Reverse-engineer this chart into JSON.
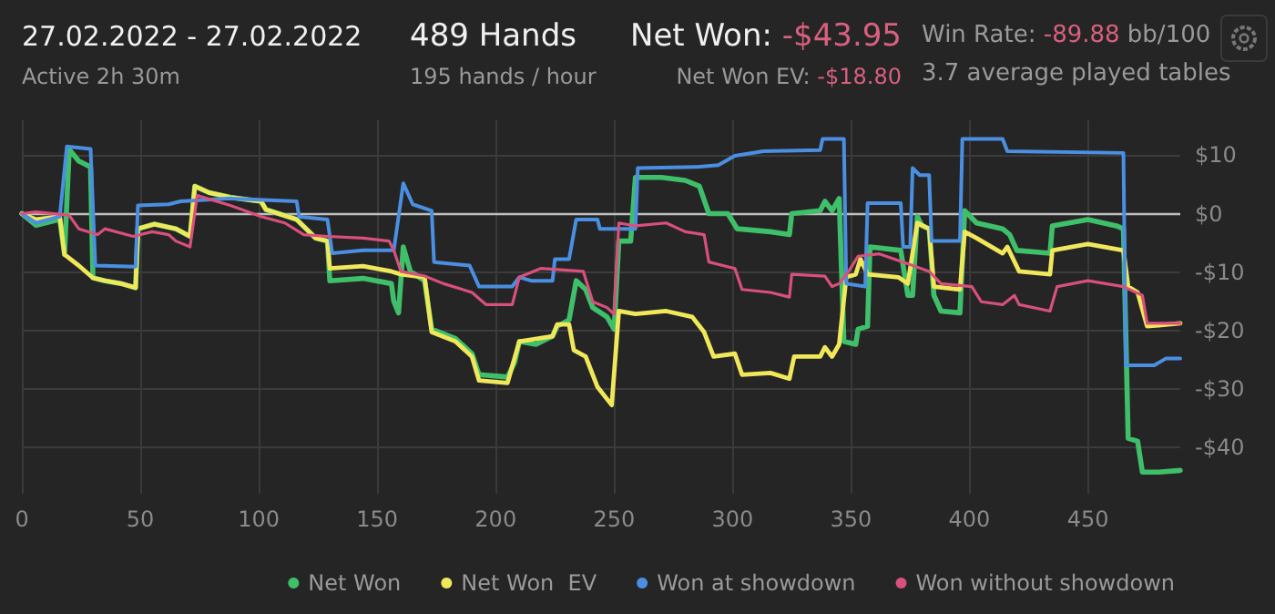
{
  "chart_data": {
    "type": "line",
    "title": "27.02.2022 - 27.02.2022",
    "subtitle": "Active 2h 30m",
    "annotations": [
      "489 Hands",
      "195 hands / hour",
      "Net Won: -$43.95",
      "Net Won  EV: -$18.80",
      "Win Rate: -89.88 bb/100",
      "3.7 average played tables"
    ],
    "xlim": [
      0,
      489
    ],
    "xticks": [
      0,
      50,
      100,
      150,
      200,
      250,
      300,
      350,
      400,
      450
    ],
    "ylim": [
      -48,
      16
    ],
    "yticks": [
      {
        "value": -40,
        "label": "-$40"
      },
      {
        "value": -30,
        "label": "-$30"
      },
      {
        "value": -20,
        "label": "-$20"
      },
      {
        "value": -10,
        "label": "-$10"
      },
      {
        "value": 0,
        "label": "$0"
      },
      {
        "value": 10,
        "label": "$10"
      }
    ],
    "grid": true,
    "legend": "bottom right",
    "marker": "none",
    "line_style": "solid",
    "ref_lines": [
      {
        "axis": "y",
        "value": 0,
        "color": "#bfbfbf"
      }
    ],
    "series": [
      {
        "name": "Net Won",
        "color": "#3fbf6a",
        "x": [
          0,
          6,
          16,
          18,
          20,
          24,
          29,
          30,
          35,
          42,
          48,
          49,
          56,
          65,
          71,
          73,
          79,
          88,
          101,
          103,
          116,
          124,
          129,
          130,
          144,
          156,
          157,
          159,
          161,
          164,
          170,
          173,
          183,
          190,
          193,
          205,
          208,
          210,
          217,
          224,
          226,
          231,
          234,
          238,
          241,
          247,
          250,
          252,
          257,
          259,
          270,
          280,
          286,
          290,
          298,
          302,
          316,
          324,
          325,
          337,
          339,
          342,
          345,
          347,
          352,
          353,
          357,
          358,
          371,
          374,
          376,
          378,
          380,
          383,
          385,
          388,
          396,
          398,
          403,
          414,
          417,
          420,
          434,
          435,
          450,
          462,
          465,
          467,
          471,
          473,
          480,
          489
        ],
        "values": [
          0,
          -2,
          -1,
          -7,
          11,
          9,
          8,
          -11,
          -11.5,
          -12,
          -12.7,
          -2.6,
          -1.8,
          -2.6,
          -3.9,
          4.7,
          3.6,
          2.8,
          2.1,
          0.7,
          -1,
          -4.2,
          -4.7,
          -11.5,
          -11.1,
          -12,
          -15,
          -17,
          -5.7,
          -9.9,
          -11.5,
          -19.8,
          -21.4,
          -24,
          -27.6,
          -28,
          -25.5,
          -21.9,
          -22.4,
          -21,
          -19.3,
          -18.2,
          -11.5,
          -13,
          -16.1,
          -17.7,
          -19.8,
          -4.7,
          -4.7,
          6.2,
          6.2,
          5.7,
          4.7,
          0,
          0,
          -2.6,
          -3.1,
          -3.6,
          0,
          0.5,
          2.1,
          0.5,
          2.6,
          -21.9,
          -22.4,
          -19.8,
          -19.3,
          -5.7,
          -6.3,
          -14,
          -14,
          -0.5,
          -2.1,
          -2.6,
          -14,
          -16.7,
          -17,
          0.5,
          -1.6,
          -2.6,
          -3.6,
          -6.3,
          -6.8,
          -2.1,
          -1,
          -2.1,
          -2.6,
          -38.5,
          -39,
          -44.3,
          -44.3,
          -44
        ]
      },
      {
        "name": "Net Won  EV",
        "color": "#f0e85a",
        "x": [
          0,
          6,
          16,
          18,
          24,
          30,
          35,
          42,
          48,
          49,
          56,
          65,
          71,
          73,
          79,
          88,
          101,
          103,
          116,
          124,
          129,
          130,
          144,
          156,
          160,
          170,
          173,
          183,
          190,
          193,
          205,
          210,
          224,
          226,
          231,
          233,
          238,
          243,
          249,
          252,
          259,
          272,
          283,
          288,
          292,
          301,
          304,
          316,
          324,
          326,
          337,
          339,
          342,
          345,
          348,
          352,
          354,
          357,
          370,
          374,
          378,
          383,
          385,
          396,
          398,
          403,
          414,
          416,
          421,
          434,
          435,
          450,
          465,
          467,
          471,
          475,
          489
        ],
        "values": [
          0,
          -1,
          -0.5,
          -7,
          -8.9,
          -11,
          -11.5,
          -12,
          -12.7,
          -2.6,
          -1.8,
          -2.6,
          -3.9,
          4.7,
          3.6,
          2.8,
          2.1,
          0.7,
          -1,
          -4.2,
          -4.7,
          -9.4,
          -9,
          -9.9,
          -10.4,
          -10.9,
          -20.3,
          -21.9,
          -24.5,
          -28.6,
          -29,
          -21.9,
          -21,
          -19,
          -19,
          -23.4,
          -24.5,
          -29.7,
          -32.8,
          -16.7,
          -17.2,
          -16.7,
          -17.7,
          -20.3,
          -24.5,
          -24,
          -27.6,
          -27.3,
          -28.3,
          -24.5,
          -24.5,
          -22.9,
          -24.5,
          -22.4,
          -10.9,
          -10.4,
          -7.8,
          -10.4,
          -10.9,
          -12,
          -1.6,
          -2.6,
          -12.5,
          -13,
          -3.1,
          -4.2,
          -6.8,
          -5.7,
          -9.9,
          -10.4,
          -6.3,
          -5.2,
          -6.3,
          -12.5,
          -13.5,
          -19.3,
          -18.8
        ]
      },
      {
        "name": "Won at showdown",
        "color": "#4a8fe2",
        "x": [
          0,
          6,
          16,
          19,
          29,
          31,
          48,
          49,
          62,
          67,
          88,
          116,
          117,
          129,
          131,
          144,
          157,
          161,
          165,
          173,
          174,
          189,
          193,
          207,
          210,
          215,
          224,
          225,
          231,
          234,
          243,
          244,
          259,
          260,
          285,
          294,
          301,
          313,
          337,
          338,
          347,
          348,
          356,
          357,
          371,
          372,
          375,
          376,
          379,
          383,
          384,
          396,
          397,
          414,
          416,
          465,
          466,
          478,
          483,
          489
        ],
        "values": [
          0,
          -1.6,
          -0.5,
          11.5,
          11.1,
          -8.9,
          -9.1,
          1.4,
          1.6,
          2.1,
          2.6,
          2.1,
          -0.5,
          -1,
          -6.8,
          -6.3,
          -6.3,
          5.2,
          1.6,
          0.5,
          -8.3,
          -8.9,
          -12.5,
          -12.5,
          -10.9,
          -11.5,
          -11.5,
          -7.8,
          -7.8,
          -1,
          -1,
          -2.6,
          -2.6,
          7.8,
          8,
          8.3,
          9.9,
          10.7,
          10.9,
          12.8,
          12.8,
          -12,
          -12.5,
          1.8,
          1.8,
          -5.7,
          -5.7,
          7.8,
          6.6,
          6.6,
          -4.7,
          -4.7,
          12.8,
          12.8,
          10.7,
          10.4,
          -26,
          -26,
          -24.8,
          -24.8
        ]
      },
      {
        "name": "Won without showdown",
        "color": "#d9507c",
        "x": [
          0,
          6,
          20,
          24,
          32,
          35,
          47,
          55,
          62,
          65,
          71,
          74,
          88,
          101,
          111,
          119,
          129,
          144,
          155,
          157,
          160,
          170,
          178,
          190,
          196,
          207,
          210,
          219,
          237,
          241,
          247,
          250,
          252,
          259,
          272,
          280,
          288,
          290,
          301,
          304,
          316,
          324,
          325,
          339,
          342,
          345,
          349,
          353,
          362,
          372,
          383,
          388,
          401,
          405,
          414,
          419,
          421,
          434,
          437,
          450,
          465,
          473,
          475,
          489
        ],
        "values": [
          0,
          0.3,
          -0.3,
          -2.6,
          -3.6,
          -2.6,
          -3.9,
          -3.1,
          -3.6,
          -4.7,
          -5.7,
          3.1,
          1.4,
          -0.5,
          -1.6,
          -3.6,
          -3.9,
          -4.2,
          -4.7,
          -6.3,
          -9.9,
          -10.7,
          -12,
          -13.5,
          -15.6,
          -15.6,
          -10.9,
          -9.4,
          -9.9,
          -15.1,
          -16.1,
          -17.2,
          -1.6,
          -2.1,
          -1.6,
          -3.1,
          -3.6,
          -8.3,
          -9.4,
          -13,
          -13.5,
          -14.3,
          -10.4,
          -10.7,
          -12.5,
          -12,
          -9.9,
          -7.3,
          -6.9,
          -8.3,
          -9.9,
          -12,
          -12.5,
          -15.1,
          -15.6,
          -14,
          -15.6,
          -16.7,
          -12.5,
          -11.5,
          -12.5,
          -14,
          -18.8,
          -18.8
        ]
      }
    ]
  }
}
